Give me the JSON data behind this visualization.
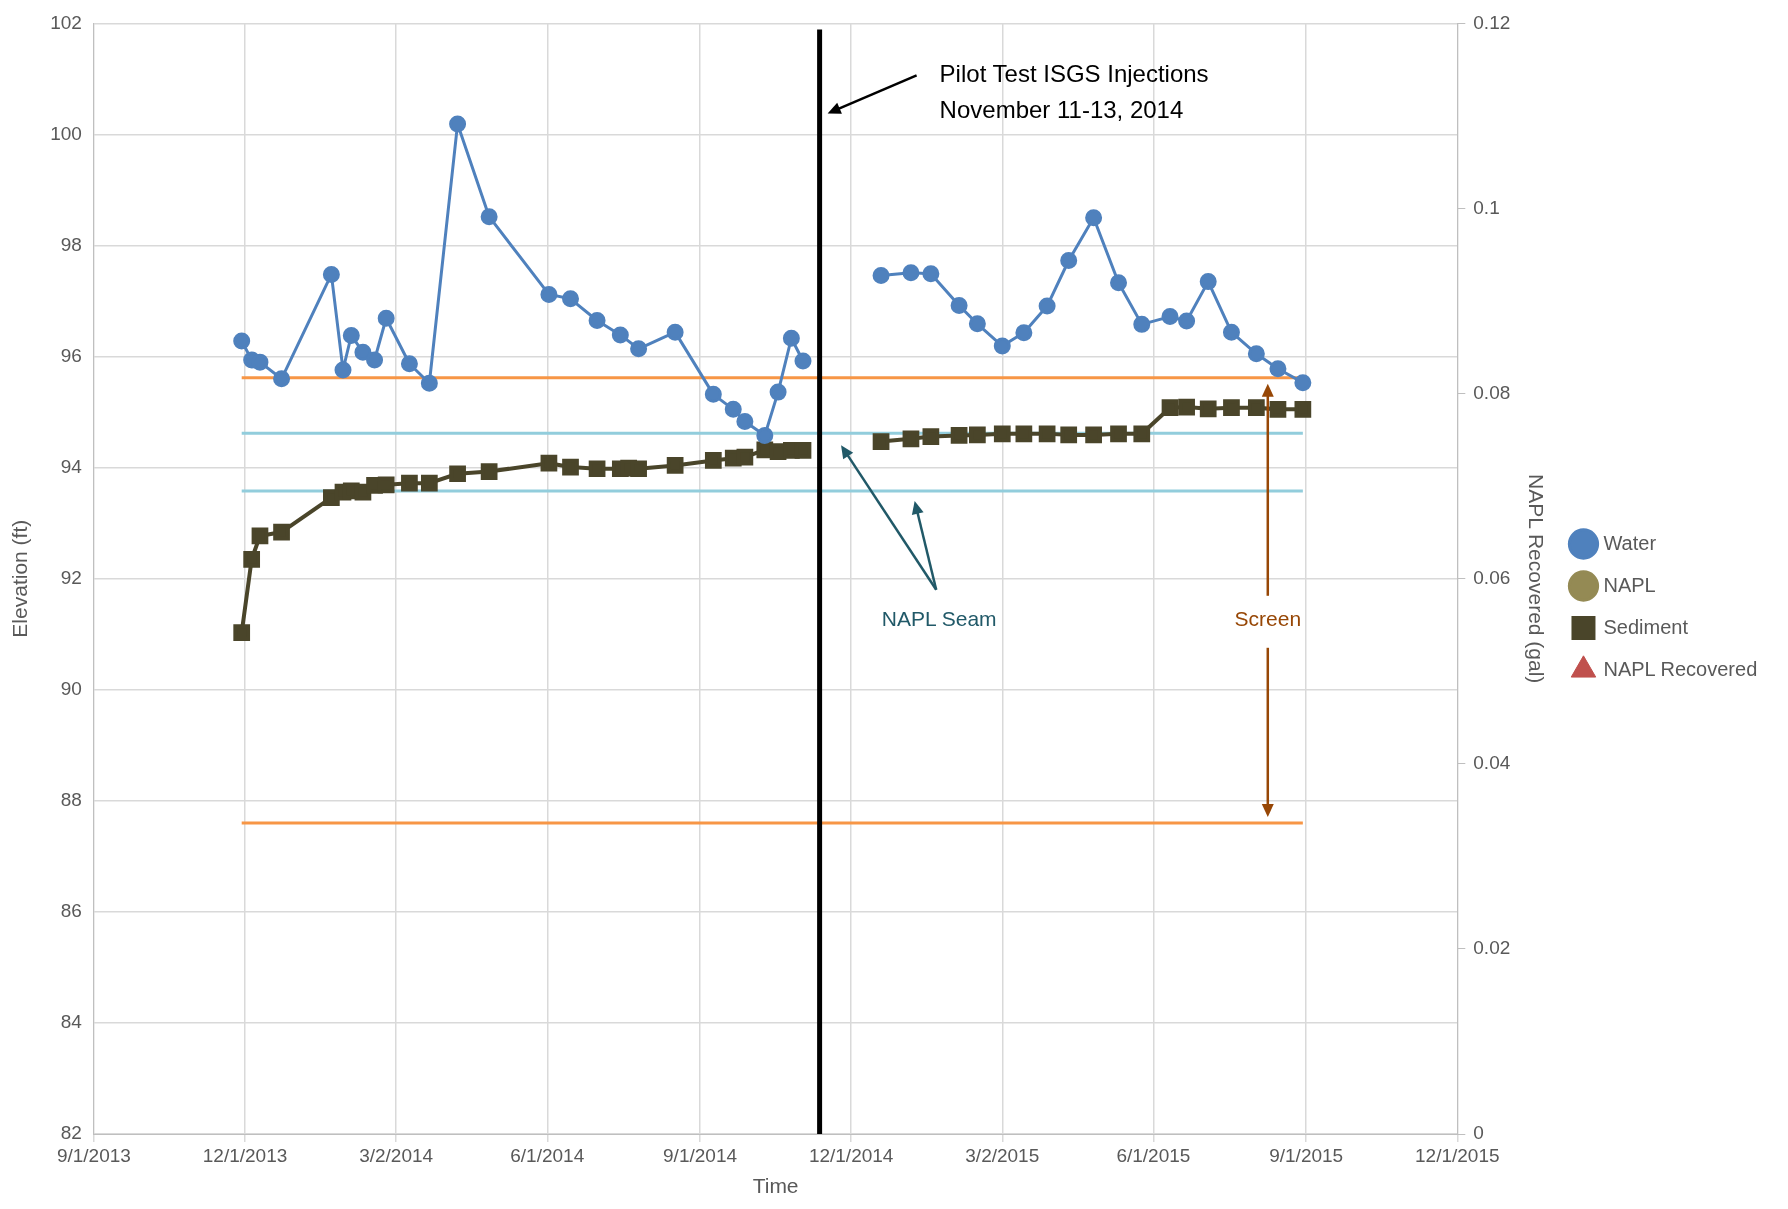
{
  "chart_data": {
    "type": "line",
    "xlabel": "Time",
    "ylabel": "Elevation (ft)",
    "y2label": "NAPL Recovered (gal)",
    "xlim": [
      "2013-09-01",
      "2015-12-01"
    ],
    "xticks": [
      {
        "value": "2013-09-01",
        "label": "9/1/2013"
      },
      {
        "value": "2013-12-01",
        "label": "12/1/2013"
      },
      {
        "value": "2014-03-02",
        "label": "3/2/2014"
      },
      {
        "value": "2014-06-01",
        "label": "6/1/2014"
      },
      {
        "value": "2014-09-01",
        "label": "9/1/2014"
      },
      {
        "value": "2014-12-01",
        "label": "12/1/2014"
      },
      {
        "value": "2015-03-02",
        "label": "3/2/2015"
      },
      {
        "value": "2015-06-01",
        "label": "6/1/2015"
      },
      {
        "value": "2015-09-01",
        "label": "9/1/2015"
      },
      {
        "value": "2015-12-01",
        "label": "12/1/2015"
      }
    ],
    "ylim": [
      82,
      102
    ],
    "yticks": [
      82,
      84,
      86,
      88,
      90,
      92,
      94,
      96,
      98,
      100,
      102
    ],
    "y2lim": [
      0,
      0.12
    ],
    "y2ticks": [
      0,
      0.02,
      0.04,
      0.06,
      0.08,
      0.1,
      0.12
    ],
    "grid": true,
    "legend": "right",
    "series": [
      {
        "name": "Water",
        "color": "#4f81bd",
        "marker": "circle",
        "x": [
          "2013-11-29",
          "2013-12-05",
          "2013-12-10",
          "2013-12-23",
          "2014-01-22",
          "2014-01-29",
          "2014-02-03",
          "2014-02-10",
          "2014-02-17",
          "2014-02-24",
          "2014-03-10",
          "2014-03-22",
          "2014-04-08",
          "2014-04-27",
          "2014-06-02",
          "2014-06-15",
          "2014-07-01",
          "2014-07-15",
          "2014-07-26",
          "2014-08-17",
          "2014-09-09",
          "2014-09-21",
          "2014-09-28",
          "2014-10-10",
          "2014-10-18",
          "2014-10-26",
          "2014-11-02",
          null,
          "2014-12-19",
          "2015-01-06",
          "2015-01-18",
          "2015-02-04",
          "2015-02-15",
          "2015-03-02",
          "2015-03-15",
          "2015-03-29",
          "2015-04-11",
          "2015-04-26",
          "2015-05-11",
          "2015-05-25",
          "2015-06-11",
          "2015-06-21",
          "2015-07-04",
          "2015-07-18",
          "2015-08-02",
          "2015-08-15",
          "2015-08-30"
        ],
        "values": [
          96.28,
          95.94,
          95.9,
          95.6,
          97.48,
          95.76,
          96.38,
          96.08,
          95.94,
          96.69,
          95.87,
          95.52,
          100.19,
          98.52,
          97.12,
          97.04,
          96.65,
          96.39,
          96.14,
          96.44,
          95.32,
          95.05,
          94.83,
          94.58,
          95.36,
          96.33,
          95.92,
          null,
          97.46,
          97.51,
          97.49,
          96.92,
          96.59,
          96.19,
          96.43,
          96.91,
          97.73,
          98.5,
          97.33,
          96.58,
          96.72,
          96.64,
          97.35,
          96.44,
          96.05,
          95.78,
          95.53
        ]
      },
      {
        "name": "NAPL",
        "color": "#948a54",
        "marker": "circle"
      },
      {
        "name": "Sediment",
        "color": "#4a452a",
        "marker": "square",
        "x": [
          "2013-11-29",
          "2013-12-05",
          "2013-12-10",
          "2013-12-23",
          "2014-01-22",
          "2014-01-29",
          "2014-02-03",
          "2014-02-10",
          "2014-02-17",
          "2014-02-24",
          "2014-03-10",
          "2014-03-22",
          "2014-04-08",
          "2014-04-27",
          "2014-06-02",
          "2014-06-15",
          "2014-07-01",
          "2014-07-15",
          "2014-07-20",
          "2014-07-26",
          "2014-08-17",
          "2014-09-09",
          "2014-09-21",
          "2014-09-28",
          "2014-10-10",
          "2014-10-18",
          "2014-10-26",
          "2014-11-02",
          null,
          "2014-12-19",
          "2015-01-06",
          "2015-01-18",
          "2015-02-04",
          "2015-02-15",
          "2015-03-02",
          "2015-03-15",
          "2015-03-29",
          "2015-04-11",
          "2015-04-26",
          "2015-05-11",
          "2015-05-25",
          "2015-06-11",
          "2015-06-21",
          "2015-07-04",
          "2015-07-18",
          "2015-08-02",
          "2015-08-15",
          "2015-08-30"
        ],
        "values": [
          91.03,
          92.35,
          92.77,
          92.84,
          93.46,
          93.56,
          93.58,
          93.56,
          93.68,
          93.69,
          93.72,
          93.72,
          93.89,
          93.93,
          94.08,
          94.01,
          93.98,
          93.98,
          93.99,
          93.98,
          94.04,
          94.13,
          94.17,
          94.19,
          94.32,
          94.29,
          94.31,
          94.31,
          null,
          94.47,
          94.52,
          94.56,
          94.58,
          94.59,
          94.61,
          94.61,
          94.61,
          94.59,
          94.59,
          94.61,
          94.61,
          95.08,
          95.09,
          95.06,
          95.08,
          95.08,
          95.05,
          95.05
        ]
      },
      {
        "name": "NAPL Recovered",
        "type": "scatter",
        "color": "#c0504d",
        "marker": "triangle"
      },
      {
        "color": "#f79646",
        "marker": "none",
        "x": [
          "2013-11-29",
          "2015-08-30"
        ],
        "values": [
          95.62,
          95.62
        ]
      },
      {
        "color": "#f79646",
        "marker": "none",
        "x": [
          "2013-11-29",
          "2015-08-30"
        ],
        "values": [
          87.6,
          87.6
        ]
      },
      {
        "color": "#92cddc",
        "marker": "none",
        "x": [
          "2013-11-29",
          "2015-08-30"
        ],
        "values": [
          94.62,
          94.62
        ]
      },
      {
        "color": "#92cddc",
        "marker": "none",
        "x": [
          "2013-11-29",
          "2015-08-30"
        ],
        "values": [
          93.58,
          93.58
        ]
      }
    ],
    "ref_lines": [
      {
        "axis": "x",
        "value": "2014-11-12",
        "color": "#000000"
      }
    ],
    "annotations": [
      "Pilot Test ISGS Injections\nNovember 11-13, 2014",
      "NAPL Seam",
      "Screen"
    ]
  }
}
